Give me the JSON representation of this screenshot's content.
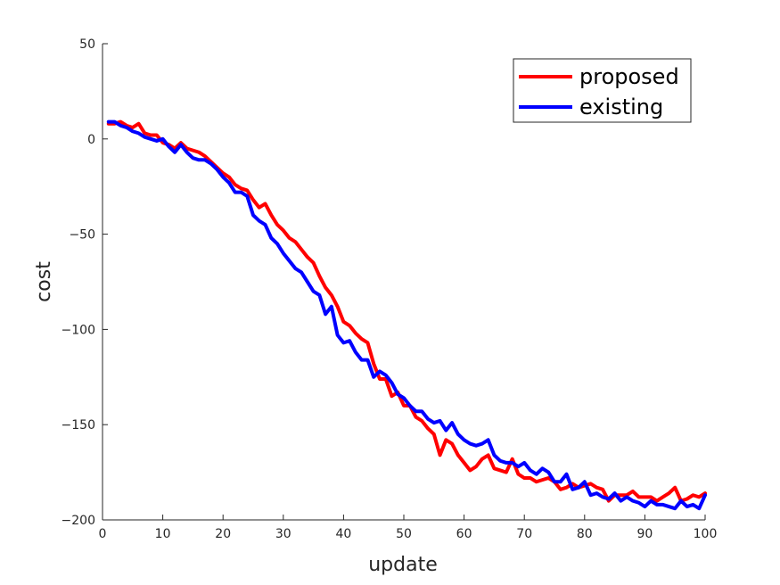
{
  "chart_data": {
    "type": "line",
    "title": "",
    "xlabel": "update",
    "ylabel": "cost",
    "xlim": [
      0,
      100
    ],
    "ylim": [
      -200,
      50
    ],
    "xticks": [
      0,
      10,
      20,
      30,
      40,
      50,
      60,
      70,
      80,
      90,
      100
    ],
    "yticks": [
      -200,
      -150,
      -100,
      -50,
      0,
      50
    ],
    "xtick_labels": [
      "0",
      "10",
      "20",
      "30",
      "40",
      "50",
      "60",
      "70",
      "80",
      "90",
      "100"
    ],
    "ytick_labels": [
      "−200",
      "−150",
      "−100",
      "−50",
      "0",
      "50"
    ],
    "grid": false,
    "legend_position": "top-right",
    "series": [
      {
        "name": "proposed",
        "color": "#ff0000",
        "x": [
          1,
          2,
          3,
          4,
          5,
          6,
          7,
          8,
          9,
          10,
          11,
          12,
          13,
          14,
          15,
          16,
          17,
          18,
          19,
          20,
          21,
          22,
          23,
          24,
          25,
          26,
          27,
          28,
          29,
          30,
          31,
          32,
          33,
          34,
          35,
          36,
          37,
          38,
          39,
          40,
          41,
          42,
          43,
          44,
          45,
          46,
          47,
          48,
          49,
          50,
          51,
          52,
          53,
          54,
          55,
          56,
          57,
          58,
          59,
          60,
          61,
          62,
          63,
          64,
          65,
          66,
          67,
          68,
          69,
          70,
          71,
          72,
          73,
          74,
          75,
          76,
          77,
          78,
          79,
          80,
          81,
          82,
          83,
          84,
          85,
          86,
          87,
          88,
          89,
          90,
          91,
          92,
          93,
          94,
          95,
          96,
          97,
          98,
          99,
          100
        ],
        "y": [
          8,
          8,
          9,
          7,
          6,
          8,
          3,
          2,
          2,
          -2,
          -3,
          -5,
          -2,
          -5,
          -6,
          -7,
          -9,
          -12,
          -15,
          -18,
          -20,
          -24,
          -26,
          -27,
          -32,
          -36,
          -34,
          -40,
          -45,
          -48,
          -52,
          -54,
          -58,
          -62,
          -65,
          -72,
          -78,
          -82,
          -88,
          -96,
          -98,
          -102,
          -105,
          -107,
          -118,
          -126,
          -126,
          -135,
          -133,
          -140,
          -140,
          -146,
          -148,
          -152,
          -155,
          -166,
          -158,
          -160,
          -166,
          -170,
          -174,
          -172,
          -168,
          -166,
          -173,
          -174,
          -175,
          -168,
          -176,
          -178,
          -178,
          -180,
          -179,
          -178,
          -180,
          -184,
          -183,
          -181,
          -183,
          -182,
          -181,
          -183,
          -184,
          -190,
          -187,
          -187,
          -187,
          -185,
          -188,
          -188,
          -188,
          -190,
          -188,
          -186,
          -183,
          -190,
          -189,
          -187,
          -188,
          -186
        ]
      },
      {
        "name": "existing",
        "color": "#0000ff",
        "x": [
          1,
          2,
          3,
          4,
          5,
          6,
          7,
          8,
          9,
          10,
          11,
          12,
          13,
          14,
          15,
          16,
          17,
          18,
          19,
          20,
          21,
          22,
          23,
          24,
          25,
          26,
          27,
          28,
          29,
          30,
          31,
          32,
          33,
          34,
          35,
          36,
          37,
          38,
          39,
          40,
          41,
          42,
          43,
          44,
          45,
          46,
          47,
          48,
          49,
          50,
          51,
          52,
          53,
          54,
          55,
          56,
          57,
          58,
          59,
          60,
          61,
          62,
          63,
          64,
          65,
          66,
          67,
          68,
          69,
          70,
          71,
          72,
          73,
          74,
          75,
          76,
          77,
          78,
          79,
          80,
          81,
          82,
          83,
          84,
          85,
          86,
          87,
          88,
          89,
          90,
          91,
          92,
          93,
          94,
          95,
          96,
          97,
          98,
          99,
          100
        ],
        "y": [
          9,
          9,
          7,
          6,
          4,
          3,
          1,
          0,
          -1,
          0,
          -4,
          -7,
          -3,
          -7,
          -10,
          -11,
          -11,
          -13,
          -16,
          -20,
          -23,
          -28,
          -28,
          -30,
          -40,
          -43,
          -45,
          -52,
          -55,
          -60,
          -64,
          -68,
          -70,
          -75,
          -80,
          -82,
          -92,
          -88,
          -103,
          -107,
          -106,
          -112,
          -116,
          -116,
          -125,
          -122,
          -124,
          -128,
          -134,
          -136,
          -140,
          -143,
          -143,
          -147,
          -149,
          -148,
          -153,
          -149,
          -155,
          -158,
          -160,
          -161,
          -160,
          -158,
          -166,
          -169,
          -170,
          -170,
          -172,
          -170,
          -174,
          -176,
          -173,
          -175,
          -180,
          -180,
          -176,
          -184,
          -183,
          -180,
          -187,
          -186,
          -188,
          -189,
          -186,
          -190,
          -188,
          -190,
          -191,
          -193,
          -190,
          -192,
          -192,
          -193,
          -194,
          -190,
          -193,
          -192,
          -194,
          -187
        ]
      }
    ]
  }
}
